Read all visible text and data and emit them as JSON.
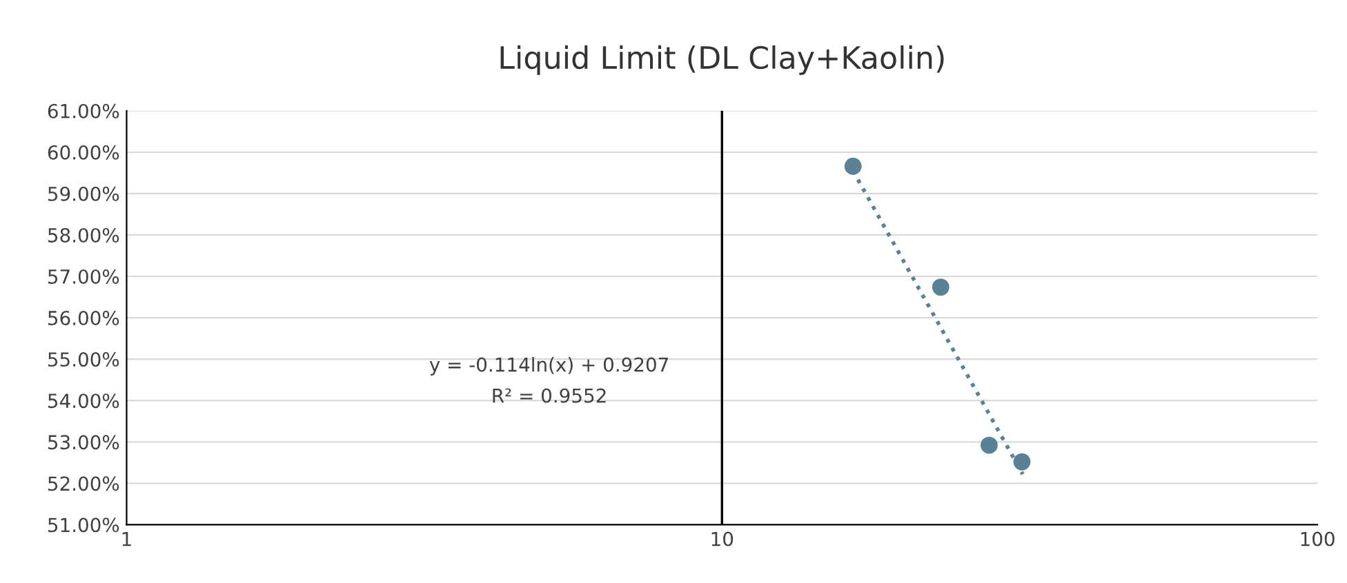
{
  "chart_data": {
    "type": "scatter",
    "title": "Liquid Limit (DL Clay+Kaolin)",
    "series": [
      {
        "color": "#5b8196",
        "marker": "circle",
        "x": [
          16.6,
          23.3,
          28.1,
          31.9
        ],
        "values": [
          0.5966,
          0.5674,
          0.5292,
          0.5252
        ]
      },
      {
        "type": "line",
        "color": "#5b8196",
        "marker": "none",
        "line_style": "dotted",
        "x": [
          16.6,
          32.0
        ],
        "values": [
          0.5955,
          0.5222
        ]
      }
    ],
    "log": "x",
    "xlim": [
      1,
      100
    ],
    "xticks": [
      1,
      10,
      100
    ],
    "ylim": [
      0.51,
      0.61
    ],
    "yticks": [
      {
        "value": 0.51,
        "label": "51.00%"
      },
      {
        "value": 0.52,
        "label": "52.00%"
      },
      {
        "value": 0.53,
        "label": "53.00%"
      },
      {
        "value": 0.54,
        "label": "54.00%"
      },
      {
        "value": 0.55,
        "label": "55.00%"
      },
      {
        "value": 0.56,
        "label": "56.00%"
      },
      {
        "value": 0.57,
        "label": "57.00%"
      },
      {
        "value": 0.58,
        "label": "58.00%"
      },
      {
        "value": 0.59,
        "label": "59.00%"
      },
      {
        "value": 0.6,
        "label": "60.00%"
      },
      {
        "value": 0.61,
        "label": "61.00%"
      }
    ],
    "grid": "y",
    "ref_lines": [
      {
        "axis": "x",
        "value": 10,
        "label": null,
        "color": "#000000"
      }
    ],
    "annotations": [
      "y = -0.114ln(x) + 0.9207",
      "R² = 0.9552"
    ],
    "legend": false
  }
}
